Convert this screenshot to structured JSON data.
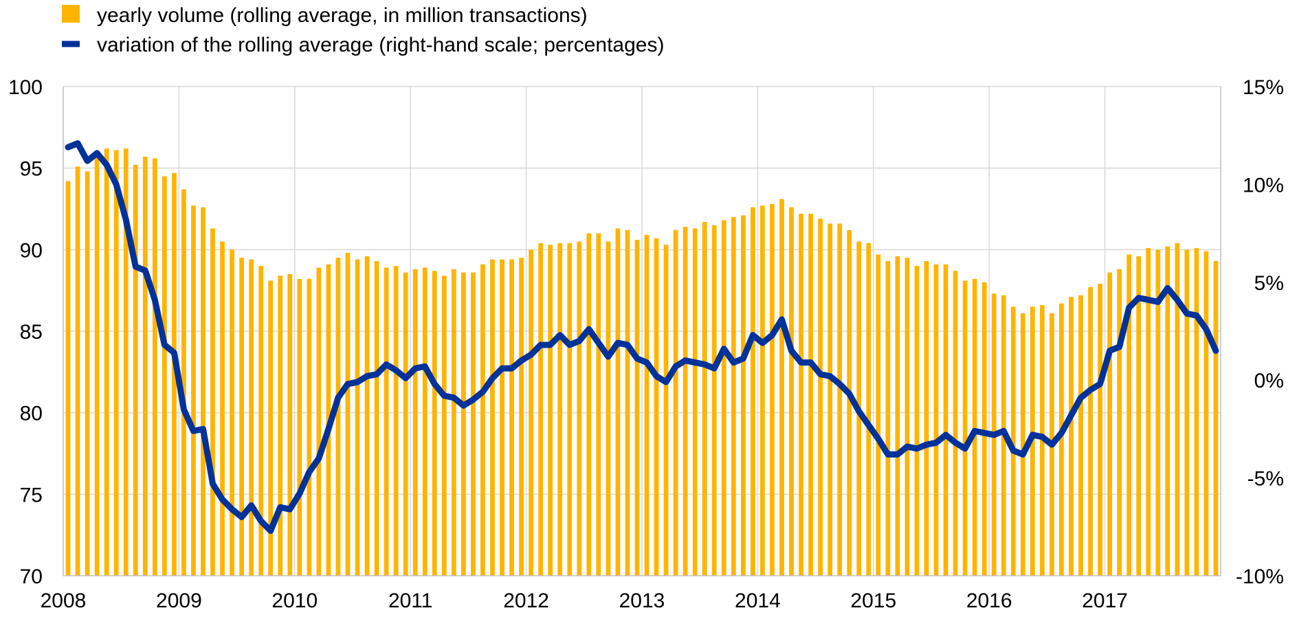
{
  "chart_data": {
    "type": "bar+line",
    "legend": {
      "placement": "top-left",
      "entries": [
        {
          "label": "yearly volume (rolling average, in million transactions)",
          "color": "#FFB400",
          "shape": "square"
        },
        {
          "label": "variation of the rolling average (right-hand scale; percentages)",
          "color": "#003299",
          "shape": "line"
        }
      ]
    },
    "x_ticks": [
      "2008",
      "2009",
      "2010",
      "2011",
      "2012",
      "2013",
      "2014",
      "2015",
      "2016",
      "2017"
    ],
    "x_start": "2008-01",
    "period": "monthly",
    "left_axis": {
      "ylim": [
        70,
        100
      ],
      "ticks": [
        "100",
        "95",
        "90",
        "85",
        "80",
        "75",
        "70"
      ],
      "values": [
        100,
        95,
        90,
        85,
        80,
        75,
        70
      ]
    },
    "right_axis": {
      "ylim": [
        -10,
        15
      ],
      "ticks": [
        "15%",
        "10%",
        "5%",
        "0%",
        "-5%",
        "-10%"
      ],
      "values": [
        15,
        10,
        5,
        0,
        -5,
        -10
      ]
    },
    "grid": true,
    "bar_color": "#FFB400",
    "line_color": "#003299",
    "series": [
      {
        "name": "yearly volume (rolling average, in million transactions)",
        "axis": "left",
        "type": "bar",
        "values": [
          94.2,
          95.1,
          94.8,
          95.9,
          96.2,
          96.1,
          96.2,
          95.2,
          95.7,
          95.6,
          94.5,
          94.7,
          93.7,
          92.7,
          92.6,
          91.3,
          90.5,
          90.0,
          89.5,
          89.4,
          89.0,
          88.1,
          88.4,
          88.5,
          88.2,
          88.2,
          88.9,
          89.1,
          89.5,
          89.8,
          89.4,
          89.6,
          89.3,
          88.9,
          89.0,
          88.6,
          88.8,
          88.9,
          88.7,
          88.4,
          88.8,
          88.6,
          88.6,
          89.1,
          89.4,
          89.4,
          89.4,
          89.5,
          90.0,
          90.4,
          90.3,
          90.4,
          90.4,
          90.5,
          91.0,
          91.0,
          90.5,
          91.3,
          91.2,
          90.6,
          90.9,
          90.7,
          90.3,
          91.2,
          91.4,
          91.3,
          91.7,
          91.5,
          91.8,
          92.0,
          92.1,
          92.6,
          92.7,
          92.8,
          93.1,
          92.6,
          92.2,
          92.2,
          91.9,
          91.6,
          91.6,
          91.2,
          90.5,
          90.4,
          89.7,
          89.3,
          89.6,
          89.5,
          89.0,
          89.3,
          89.1,
          89.1,
          88.7,
          88.1,
          88.2,
          88.0,
          87.3,
          87.2,
          86.5,
          86.1,
          86.5,
          86.6,
          86.1,
          86.7,
          87.1,
          87.2,
          87.7,
          87.9,
          88.6,
          88.8,
          89.7,
          89.6,
          90.1,
          90.0,
          90.2,
          90.4,
          90.0,
          90.1,
          89.9,
          89.3
        ]
      },
      {
        "name": "variation of the rolling average (right-hand scale; percentages)",
        "axis": "right",
        "type": "line",
        "values": [
          11.9,
          12.1,
          11.2,
          11.6,
          11.0,
          10.0,
          8.2,
          5.8,
          5.6,
          4.1,
          1.8,
          1.4,
          -1.5,
          -2.6,
          -2.5,
          -5.3,
          -6.1,
          -6.6,
          -7.0,
          -6.4,
          -7.2,
          -7.7,
          -6.5,
          -6.6,
          -5.8,
          -4.7,
          -4.0,
          -2.5,
          -0.9,
          -0.2,
          -0.1,
          0.2,
          0.3,
          0.8,
          0.5,
          0.1,
          0.6,
          0.7,
          -0.2,
          -0.8,
          -0.9,
          -1.3,
          -1.0,
          -0.6,
          0.1,
          0.6,
          0.6,
          1.0,
          1.3,
          1.8,
          1.8,
          2.3,
          1.8,
          2.0,
          2.6,
          1.9,
          1.2,
          1.9,
          1.8,
          1.1,
          0.9,
          0.2,
          -0.1,
          0.7,
          1.0,
          0.9,
          0.8,
          0.6,
          1.6,
          0.9,
          1.1,
          2.3,
          1.9,
          2.3,
          3.1,
          1.5,
          0.9,
          0.9,
          0.3,
          0.2,
          -0.2,
          -0.7,
          -1.6,
          -2.3,
          -3.0,
          -3.8,
          -3.8,
          -3.4,
          -3.5,
          -3.3,
          -3.2,
          -2.8,
          -3.2,
          -3.5,
          -2.6,
          -2.7,
          -2.8,
          -2.6,
          -3.6,
          -3.8,
          -2.8,
          -2.9,
          -3.3,
          -2.7,
          -1.8,
          -0.9,
          -0.5,
          -0.2,
          1.5,
          1.7,
          3.7,
          4.2,
          4.1,
          4.0,
          4.7,
          4.1,
          3.4,
          3.3,
          2.6,
          1.5
        ]
      }
    ]
  }
}
